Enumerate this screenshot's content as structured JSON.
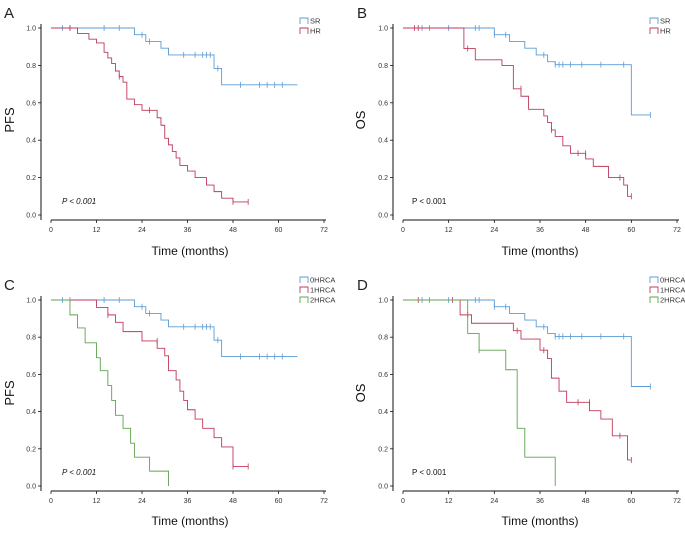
{
  "colors": {
    "blue": "#5b9bd5",
    "red": "#c0395a",
    "green": "#5ea44d",
    "axis": "#111111"
  },
  "chart_data": [
    {
      "panel": "A",
      "type": "line",
      "step": true,
      "xlabel": "Time (months)",
      "ylabel": "PFS",
      "xticks": [
        "0",
        "12",
        "24",
        "36",
        "48",
        "60",
        "72"
      ],
      "yticks": [
        "0.0",
        "0.2",
        "0.4",
        "0.6",
        "0.8",
        "1.0"
      ],
      "xlim": [
        0,
        72
      ],
      "ylim": [
        0,
        1
      ],
      "annotation": "P < 0.001",
      "pstyle": "italic",
      "legend_position": "top-right",
      "series": [
        {
          "name": "SR",
          "color": "blue",
          "steps": [
            [
              0,
              1.0
            ],
            [
              22,
              0.964
            ],
            [
              25,
              0.928
            ],
            [
              29,
              0.892
            ],
            [
              31,
              0.856
            ],
            [
              43,
              0.784
            ],
            [
              45,
              0.696
            ],
            [
              65,
              0.696
            ]
          ],
          "censors": [
            [
              3,
              1
            ],
            [
              5,
              1
            ],
            [
              14,
              1
            ],
            [
              18,
              1
            ],
            [
              24,
              0.964
            ],
            [
              26,
              0.928
            ],
            [
              35,
              0.856
            ],
            [
              38,
              0.856
            ],
            [
              40,
              0.856
            ],
            [
              41,
              0.856
            ],
            [
              42,
              0.856
            ],
            [
              44,
              0.784
            ],
            [
              50,
              0.696
            ],
            [
              55,
              0.696
            ],
            [
              57,
              0.696
            ],
            [
              59,
              0.696
            ],
            [
              61,
              0.696
            ]
          ]
        },
        {
          "name": "HR",
          "color": "red",
          "steps": [
            [
              0,
              1.0
            ],
            [
              7,
              0.97
            ],
            [
              10,
              0.94
            ],
            [
              12,
              0.92
            ],
            [
              14,
              0.87
            ],
            [
              15,
              0.84
            ],
            [
              16,
              0.81
            ],
            [
              17,
              0.77
            ],
            [
              18,
              0.74
            ],
            [
              19,
              0.71
            ],
            [
              20,
              0.62
            ],
            [
              22,
              0.59
            ],
            [
              24,
              0.56
            ],
            [
              28,
              0.52
            ],
            [
              29,
              0.48
            ],
            [
              30,
              0.41
            ],
            [
              31,
              0.375
            ],
            [
              32,
              0.34
            ],
            [
              33,
              0.305
            ],
            [
              34,
              0.265
            ],
            [
              36,
              0.235
            ],
            [
              38,
              0.2
            ],
            [
              41,
              0.16
            ],
            [
              43,
              0.125
            ],
            [
              45,
              0.09
            ],
            [
              48,
              0.07
            ],
            [
              52,
              0.07
            ]
          ],
          "censors": [
            [
              5,
              1.0
            ],
            [
              18,
              0.74
            ],
            [
              26,
              0.56
            ],
            [
              48,
              0.07
            ],
            [
              52,
              0.07
            ]
          ]
        }
      ]
    },
    {
      "panel": "B",
      "type": "line",
      "step": true,
      "xlabel": "Time (months)",
      "ylabel": "OS",
      "xticks": [
        "0",
        "12",
        "24",
        "36",
        "48",
        "60",
        "72"
      ],
      "yticks": [
        "0.0",
        "0.2",
        "0.4",
        "0.6",
        "0.8",
        "1.0"
      ],
      "xlim": [
        0,
        72
      ],
      "ylim": [
        0,
        1
      ],
      "annotation": "P < 0.001",
      "pstyle": "mixed",
      "legend_position": "top-right",
      "series": [
        {
          "name": "SR",
          "color": "blue",
          "steps": [
            [
              0,
              1.0
            ],
            [
              24,
              0.964
            ],
            [
              28,
              0.928
            ],
            [
              32,
              0.892
            ],
            [
              35,
              0.856
            ],
            [
              38,
              0.82
            ],
            [
              40,
              0.804
            ],
            [
              60,
              0.535
            ],
            [
              65,
              0.535
            ]
          ],
          "censors": [
            [
              5,
              1
            ],
            [
              7,
              1
            ],
            [
              12,
              1
            ],
            [
              19,
              1
            ],
            [
              20,
              1
            ],
            [
              24,
              0.964
            ],
            [
              27,
              0.964
            ],
            [
              37,
              0.856
            ],
            [
              40,
              0.804
            ],
            [
              41,
              0.804
            ],
            [
              42,
              0.804
            ],
            [
              44,
              0.804
            ],
            [
              47,
              0.804
            ],
            [
              52,
              0.804
            ],
            [
              58,
              0.804
            ],
            [
              65,
              0.535
            ]
          ]
        },
        {
          "name": "HR",
          "color": "red",
          "steps": [
            [
              0,
              1.0
            ],
            [
              16,
              0.89
            ],
            [
              19,
              0.83
            ],
            [
              26,
              0.8
            ],
            [
              29,
              0.675
            ],
            [
              31,
              0.635
            ],
            [
              33,
              0.565
            ],
            [
              37,
              0.53
            ],
            [
              38,
              0.495
            ],
            [
              39,
              0.455
            ],
            [
              40,
              0.42
            ],
            [
              42,
              0.37
            ],
            [
              44,
              0.33
            ],
            [
              48,
              0.3
            ],
            [
              50,
              0.26
            ],
            [
              54,
              0.2
            ],
            [
              58,
              0.16
            ],
            [
              59,
              0.1
            ],
            [
              60,
              0.1
            ]
          ],
          "censors": [
            [
              3,
              1.0
            ],
            [
              4,
              1.0
            ],
            [
              17,
              0.89
            ],
            [
              31,
              0.675
            ],
            [
              39,
              0.455
            ],
            [
              46,
              0.33
            ],
            [
              48,
              0.33
            ],
            [
              57,
              0.2
            ],
            [
              60,
              0.1
            ]
          ]
        }
      ]
    },
    {
      "panel": "C",
      "type": "line",
      "step": true,
      "xlabel": "Time (months)",
      "ylabel": "PFS",
      "xticks": [
        "0",
        "12",
        "24",
        "36",
        "48",
        "60",
        "72"
      ],
      "yticks": [
        "0.0",
        "0.2",
        "0.4",
        "0.6",
        "0.8",
        "1.0"
      ],
      "xlim": [
        0,
        72
      ],
      "ylim": [
        0,
        1
      ],
      "annotation": "P < 0.001",
      "pstyle": "italic",
      "legend_position": "top-right",
      "series": [
        {
          "name": "0HRCA",
          "color": "blue",
          "steps": [
            [
              0,
              1.0
            ],
            [
              22,
              0.964
            ],
            [
              25,
              0.928
            ],
            [
              29,
              0.892
            ],
            [
              31,
              0.856
            ],
            [
              43,
              0.784
            ],
            [
              45,
              0.696
            ],
            [
              65,
              0.696
            ]
          ],
          "censors": [
            [
              3,
              1
            ],
            [
              5,
              1
            ],
            [
              14,
              1
            ],
            [
              18,
              1
            ],
            [
              24,
              0.964
            ],
            [
              26,
              0.928
            ],
            [
              35,
              0.856
            ],
            [
              38,
              0.856
            ],
            [
              40,
              0.856
            ],
            [
              41,
              0.856
            ],
            [
              42,
              0.856
            ],
            [
              44,
              0.784
            ],
            [
              50,
              0.696
            ],
            [
              55,
              0.696
            ],
            [
              57,
              0.696
            ],
            [
              59,
              0.696
            ],
            [
              61,
              0.696
            ]
          ]
        },
        {
          "name": "1HRCA",
          "color": "red",
          "steps": [
            [
              0,
              1.0
            ],
            [
              12,
              0.96
            ],
            [
              15,
              0.92
            ],
            [
              17,
              0.88
            ],
            [
              19,
              0.83
            ],
            [
              24,
              0.78
            ],
            [
              28,
              0.74
            ],
            [
              30,
              0.7
            ],
            [
              31,
              0.62
            ],
            [
              33,
              0.57
            ],
            [
              34,
              0.51
            ],
            [
              35,
              0.46
            ],
            [
              36,
              0.41
            ],
            [
              38,
              0.36
            ],
            [
              40,
              0.31
            ],
            [
              43,
              0.26
            ],
            [
              45,
              0.21
            ],
            [
              48,
              0.105
            ],
            [
              52,
              0.105
            ]
          ],
          "censors": [
            [
              15,
              0.92
            ],
            [
              28,
              0.78
            ],
            [
              48,
              0.105
            ],
            [
              52,
              0.105
            ]
          ]
        },
        {
          "name": "2HRCA",
          "color": "green",
          "steps": [
            [
              0,
              1.0
            ],
            [
              5,
              0.92
            ],
            [
              7,
              0.85
            ],
            [
              9,
              0.77
            ],
            [
              12,
              0.69
            ],
            [
              13,
              0.62
            ],
            [
              15,
              0.54
            ],
            [
              16,
              0.46
            ],
            [
              17,
              0.38
            ],
            [
              19,
              0.31
            ],
            [
              21,
              0.23
            ],
            [
              22,
              0.155
            ],
            [
              26,
              0.08
            ],
            [
              31,
              0.0
            ]
          ],
          "censors": []
        }
      ]
    },
    {
      "panel": "D",
      "type": "line",
      "step": true,
      "xlabel": "Time (months)",
      "ylabel": "OS",
      "xticks": [
        "0",
        "12",
        "24",
        "36",
        "48",
        "60",
        "72"
      ],
      "yticks": [
        "0.0",
        "0.2",
        "0.4",
        "0.6",
        "0.8",
        "1.0"
      ],
      "xlim": [
        0,
        72
      ],
      "ylim": [
        0,
        1
      ],
      "annotation": "P < 0.001",
      "pstyle": "mixed",
      "legend_position": "top-right",
      "series": [
        {
          "name": "0HRCA",
          "color": "blue",
          "steps": [
            [
              0,
              1.0
            ],
            [
              24,
              0.964
            ],
            [
              28,
              0.928
            ],
            [
              32,
              0.892
            ],
            [
              35,
              0.856
            ],
            [
              38,
              0.82
            ],
            [
              40,
              0.804
            ],
            [
              60,
              0.535
            ],
            [
              65,
              0.535
            ]
          ],
          "censors": [
            [
              5,
              1
            ],
            [
              7,
              1
            ],
            [
              12,
              1
            ],
            [
              19,
              1
            ],
            [
              20,
              1
            ],
            [
              24,
              0.964
            ],
            [
              27,
              0.964
            ],
            [
              37,
              0.856
            ],
            [
              40,
              0.804
            ],
            [
              41,
              0.804
            ],
            [
              42,
              0.804
            ],
            [
              44,
              0.804
            ],
            [
              47,
              0.804
            ],
            [
              52,
              0.804
            ],
            [
              58,
              0.804
            ],
            [
              65,
              0.535
            ]
          ]
        },
        {
          "name": "1HRCA",
          "color": "red",
          "steps": [
            [
              0,
              1.0
            ],
            [
              15,
              0.92
            ],
            [
              18,
              0.875
            ],
            [
              29,
              0.835
            ],
            [
              31,
              0.79
            ],
            [
              36,
              0.73
            ],
            [
              38,
              0.685
            ],
            [
              39,
              0.58
            ],
            [
              41,
              0.51
            ],
            [
              43,
              0.45
            ],
            [
              49,
              0.405
            ],
            [
              52,
              0.36
            ],
            [
              55,
              0.27
            ],
            [
              59,
              0.14
            ],
            [
              60,
              0.14
            ]
          ],
          "censors": [
            [
              4,
              1.0
            ],
            [
              13,
              1.0
            ],
            [
              17,
              0.92
            ],
            [
              30,
              0.835
            ],
            [
              37,
              0.73
            ],
            [
              46,
              0.45
            ],
            [
              49,
              0.45
            ],
            [
              57,
              0.27
            ],
            [
              60,
              0.14
            ]
          ]
        },
        {
          "name": "2HRCA",
          "color": "green",
          "steps": [
            [
              0,
              1.0
            ],
            [
              17,
              0.82
            ],
            [
              20,
              0.73
            ],
            [
              27,
              0.625
            ],
            [
              30,
              0.31
            ],
            [
              32,
              0.155
            ],
            [
              40,
              0.0
            ]
          ],
          "censors": [
            [
              20,
              0.73
            ]
          ]
        }
      ]
    }
  ]
}
